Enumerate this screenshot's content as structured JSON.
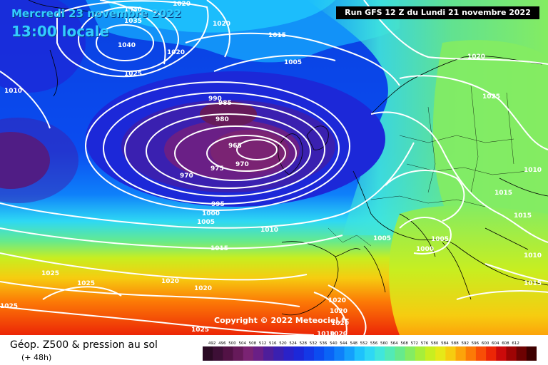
{
  "header": {
    "date": "Mercredi 23 novembre 2022",
    "local_time": "13:00 locale",
    "run": "Run GFS 12 Z du Lundi 21 novembre 2022"
  },
  "copyright": "Copyright © 2022 Meteociel.fr",
  "footer": {
    "product": "Géop. Z500 & pression au sol",
    "lead": "(+ 48h)"
  },
  "color_scale": {
    "labels": [
      "492",
      "496",
      "500",
      "504",
      "508",
      "512",
      "516",
      "520",
      "524",
      "528",
      "532",
      "536",
      "540",
      "544",
      "548",
      "552",
      "556",
      "560",
      "564",
      "568",
      "572",
      "576",
      "580",
      "584",
      "588",
      "592",
      "596",
      "600",
      "604",
      "608",
      "612"
    ],
    "colors": [
      "#2a0a24",
      "#3d0f36",
      "#521245",
      "#661a5a",
      "#7a2373",
      "#6a1f86",
      "#4e1e9a",
      "#3a20b0",
      "#2a22c8",
      "#1c28d8",
      "#1438e6",
      "#0c4cf0",
      "#0a64f6",
      "#0e80fa",
      "#14a0fc",
      "#1ec2fc",
      "#2ed8f4",
      "#40e6dc",
      "#52eab6",
      "#66ea8c",
      "#84ec62",
      "#a6ee3a",
      "#c8ee20",
      "#e6e818",
      "#f6cc10",
      "#fca40a",
      "#fc7a06",
      "#f84e06",
      "#ec2606",
      "#cc0a0a",
      "#9e0404",
      "#6e0202",
      "#3e0000"
    ]
  },
  "isobar_labels": [
    {
      "id": "1030-n",
      "text": "1030"
    },
    {
      "id": "1020-top",
      "text": "1020"
    },
    {
      "id": "1035",
      "text": "1035"
    },
    {
      "id": "1020-b",
      "text": "1020"
    },
    {
      "id": "1040",
      "text": "1040"
    },
    {
      "id": "1020-c",
      "text": "1020"
    },
    {
      "id": "1025-a",
      "text": "1025"
    },
    {
      "id": "1015-a",
      "text": "1015"
    },
    {
      "id": "1005-a",
      "text": "1005"
    },
    {
      "id": "1020-d",
      "text": "1020"
    },
    {
      "id": "1010-w",
      "text": "1010"
    },
    {
      "id": "1025-b",
      "text": "1025"
    },
    {
      "id": "990",
      "text": "990"
    },
    {
      "id": "985",
      "text": "985"
    },
    {
      "id": "980",
      "text": "980"
    },
    {
      "id": "965",
      "text": "965"
    },
    {
      "id": "970-a",
      "text": "970"
    },
    {
      "id": "975",
      "text": "975"
    },
    {
      "id": "970-b",
      "text": "970"
    },
    {
      "id": "1010-e",
      "text": "1010"
    },
    {
      "id": "1015-b",
      "text": "1015"
    },
    {
      "id": "995",
      "text": "995"
    },
    {
      "id": "1000-a",
      "text": "1000"
    },
    {
      "id": "1005-b",
      "text": "1005"
    },
    {
      "id": "1010-b",
      "text": "1010"
    },
    {
      "id": "1005-c",
      "text": "1005"
    },
    {
      "id": "1005-d",
      "text": "1005"
    },
    {
      "id": "1000-b",
      "text": "1000"
    },
    {
      "id": "1015-c",
      "text": "1015"
    },
    {
      "id": "1010-c",
      "text": "1010"
    },
    {
      "id": "1015-d",
      "text": "1015"
    },
    {
      "id": "1025-c",
      "text": "1025"
    },
    {
      "id": "1025-d",
      "text": "1025"
    },
    {
      "id": "1020-e",
      "text": "1020"
    },
    {
      "id": "1020-f",
      "text": "1020"
    },
    {
      "id": "1025-e",
      "text": "1025"
    },
    {
      "id": "1020-g",
      "text": "1020"
    },
    {
      "id": "1020-h",
      "text": "1020"
    },
    {
      "id": "1015-e",
      "text": "1015"
    },
    {
      "id": "1020-i",
      "text": "1020"
    },
    {
      "id": "1025-f",
      "text": "1025"
    },
    {
      "id": "1020-j",
      "text": "1020"
    },
    {
      "id": "1010-d",
      "text": "1010"
    }
  ]
}
